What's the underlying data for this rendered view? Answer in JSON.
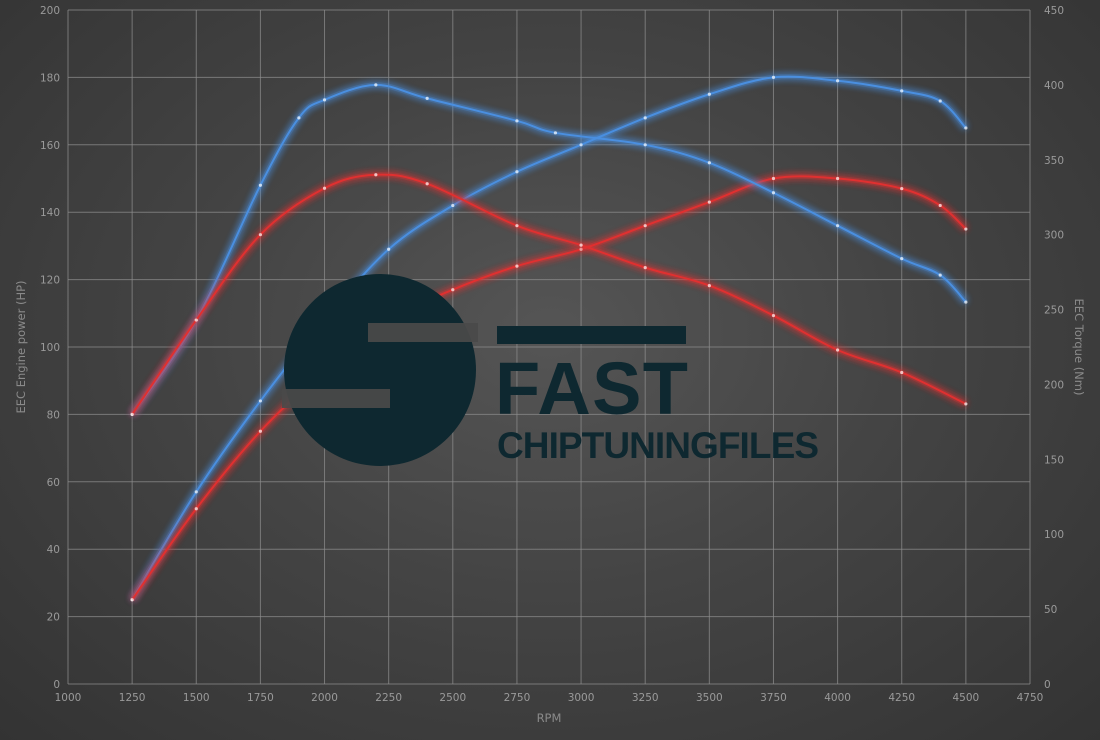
{
  "chart_data": {
    "type": "line",
    "title": "",
    "xlabel": "RPM",
    "ylabel_left": "EEC Engine power (HP)",
    "ylabel_right": "EEC Torque (Nm)",
    "xlim": [
      1000,
      4750
    ],
    "ylim_left": [
      0,
      200
    ],
    "ylim_right": [
      0,
      450
    ],
    "x_ticks": [
      1000,
      1250,
      1500,
      1750,
      2000,
      2250,
      2500,
      2750,
      3000,
      3250,
      3500,
      3750,
      4000,
      4250,
      4500,
      4750
    ],
    "y_ticks_left": [
      0,
      20,
      40,
      60,
      80,
      100,
      120,
      140,
      160,
      180,
      200
    ],
    "y_ticks_right": [
      0,
      50,
      100,
      150,
      200,
      250,
      300,
      350,
      400,
      450
    ],
    "grid": true,
    "legend": "none",
    "series": [
      {
        "axis": "left",
        "color": "#4a8fe0",
        "x": [
          1250,
          1500,
          1750,
          2000,
          2250,
          2500,
          2750,
          3000,
          3250,
          3500,
          3750,
          4000,
          4250,
          4400,
          4500
        ],
        "y": [
          25,
          57,
          84,
          108,
          129,
          142,
          152,
          160,
          168,
          175,
          180,
          179,
          176,
          173,
          165
        ]
      },
      {
        "axis": "left",
        "color": "#e03030",
        "x": [
          1250,
          1500,
          1750,
          2000,
          2250,
          2500,
          2750,
          3000,
          3250,
          3500,
          3750,
          4000,
          4250,
          4400,
          4500
        ],
        "y": [
          25,
          52,
          75,
          93,
          108,
          117,
          124,
          129,
          136,
          143,
          150,
          150,
          147,
          142,
          135
        ]
      },
      {
        "axis": "right",
        "color": "#4a8fe0",
        "x": [
          1250,
          1500,
          1750,
          1900,
          2000,
          2200,
          2400,
          2750,
          2900,
          3250,
          3500,
          3750,
          4000,
          4250,
          4400,
          4500
        ],
        "y": [
          180,
          243,
          333,
          378,
          390,
          400,
          391,
          376,
          368,
          360,
          348,
          328,
          306,
          284,
          273,
          255
        ]
      },
      {
        "axis": "right",
        "color": "#e03030",
        "x": [
          1250,
          1500,
          1750,
          2000,
          2200,
          2400,
          2750,
          3000,
          3250,
          3500,
          3750,
          4000,
          4250,
          4500
        ],
        "y": [
          180,
          243,
          300,
          331,
          340,
          334,
          306,
          293,
          278,
          266,
          246,
          223,
          208,
          187
        ]
      }
    ]
  },
  "logo": {
    "word1": "FAST",
    "word2": "CHIPTUNINGFILES",
    "color": "#0e2830"
  }
}
